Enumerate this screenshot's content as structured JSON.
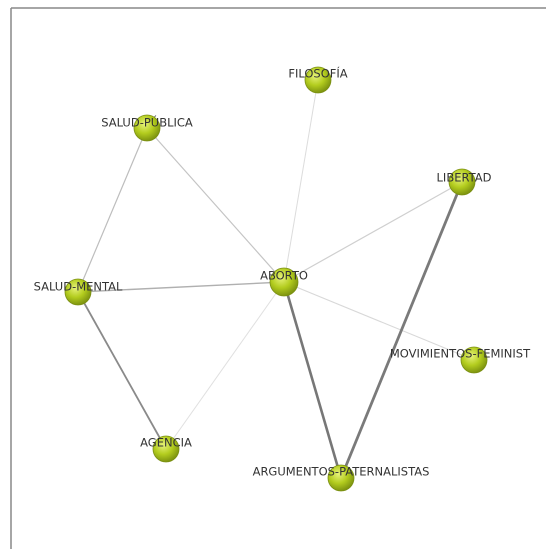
{
  "nodes": [
    {
      "label": "FILOSOFÍA"
    },
    {
      "label": "SALUD-PÚBLICA"
    },
    {
      "label": "LIBERTAD"
    },
    {
      "label": "SALUD-MENTAL"
    },
    {
      "label": "ABORTO"
    },
    {
      "label": "MOVIMIENTOS-FEMINIST"
    },
    {
      "label": "AGENCIA"
    },
    {
      "label": "ARGUMENTOS-PATERNALISTAS"
    }
  ]
}
